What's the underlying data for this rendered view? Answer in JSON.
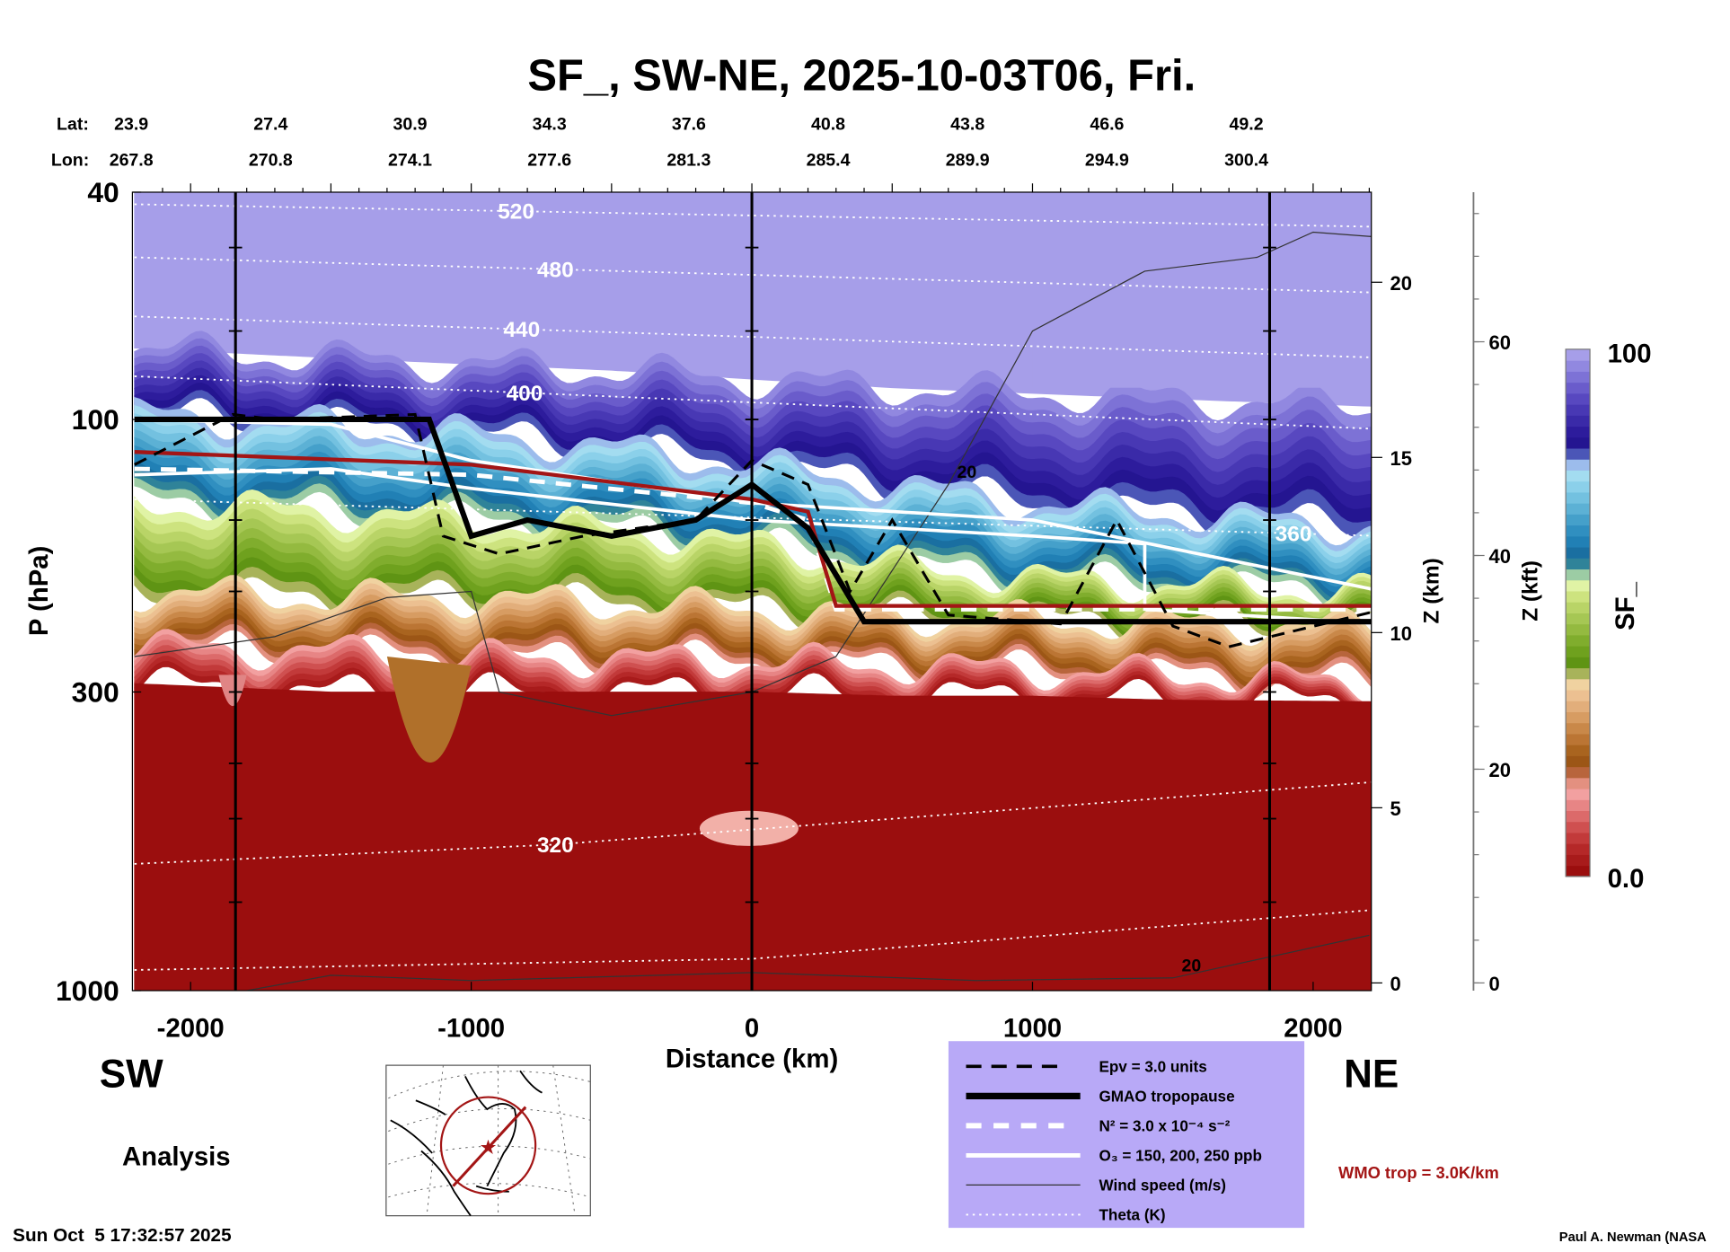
{
  "chart_data": {
    "type": "heatmap",
    "title": "SF_, SW-NE, 2025-10-03T06, Fri.",
    "xlabel": "Distance (km)",
    "ylabel": "P (hPa)",
    "y2label": "Z (km)",
    "y3label": "Z (kft)",
    "colorbar_label": "SF_",
    "xlim": [
      -2170,
      2245
    ],
    "ylim_hPa": [
      1000,
      40
    ],
    "x_ticks": [
      "-2000",
      "-1000",
      "0",
      "1000",
      "2000"
    ],
    "x_tick_values": [
      -2000,
      -1000,
      0,
      1000,
      2000
    ],
    "y_ticks": [
      "40",
      "100",
      "300",
      "1000"
    ],
    "y_tick_values": [
      40,
      100,
      300,
      1000
    ],
    "z_km_ticks": [
      "0",
      "5",
      "10",
      "15",
      "20"
    ],
    "z_km_values": [
      0,
      5,
      10,
      15,
      20
    ],
    "z_kft_ticks": [
      "0",
      "20",
      "40",
      "60"
    ],
    "z_kft_values": [
      0,
      20,
      40,
      60
    ],
    "lat_label": "Lat:",
    "lon_label": "Lon:",
    "lat": [
      "23.9",
      "27.4",
      "30.9",
      "34.3",
      "37.6",
      "40.8",
      "43.8",
      "46.6",
      "49.2"
    ],
    "lon": [
      "267.8",
      "270.8",
      "274.1",
      "277.6",
      "281.3",
      "285.4",
      "289.9",
      "294.9",
      "300.4"
    ],
    "vertical_markers_km": [
      -1840,
      0,
      1845
    ],
    "colorbar": {
      "min_label": "0.0",
      "max_label": "100",
      "colors": [
        "#9b0e0e",
        "#a81b1b",
        "#b52828",
        "#c23a3a",
        "#cf5050",
        "#dc6a6a",
        "#e78585",
        "#f2a0a0",
        "#e39080",
        "#b8653c",
        "#9c5616",
        "#a9641f",
        "#bb7534",
        "#c98849",
        "#d79c62",
        "#e2ae7b",
        "#ecc091",
        "#f0d2a0",
        "#a8b35a",
        "#5f9414",
        "#6fa11e",
        "#80ad2d",
        "#94ba40",
        "#a6c754",
        "#b9d467",
        "#cde37f",
        "#e0f3a5",
        "#9ccca4",
        "#2f8399",
        "#1a6fa1",
        "#2180b5",
        "#308fc0",
        "#45a0ca",
        "#5cb1d5",
        "#73c1e0",
        "#8bd0ea",
        "#a3dcf0",
        "#9cbcec",
        "#4b56b7",
        "#241591",
        "#2d1c9c",
        "#3a2aa8",
        "#4838b4",
        "#5848c0",
        "#6a5ccb",
        "#7d72d6",
        "#9188e0",
        "#a69ee9"
      ]
    },
    "layers_x_km": [
      -2200,
      -1500,
      -1000,
      -500,
      0,
      500,
      1000,
      1500,
      2250
    ],
    "layer_boundaries_hPa": [
      {
        "name": "lavender-purple",
        "values": [
          75,
          78,
          80,
          82,
          85,
          88,
          90,
          92,
          95
        ]
      },
      {
        "name": "purple-blue",
        "values": [
          98,
          102,
          106,
          112,
          120,
          130,
          140,
          146,
          155
        ]
      },
      {
        "name": "blue-green",
        "values": [
          140,
          145,
          150,
          155,
          165,
          180,
          190,
          195,
          200
        ]
      },
      {
        "name": "green-tan",
        "values": [
          200,
          205,
          205,
          210,
          215,
          222,
          225,
          228,
          232
        ]
      },
      {
        "name": "tan-pink",
        "values": [
          250,
          255,
          262,
          262,
          265,
          270,
          275,
          280,
          290
        ]
      },
      {
        "name": "pink-red",
        "values": [
          290,
          300,
          300,
          300,
          300,
          305,
          305,
          310,
          312
        ]
      }
    ],
    "theta_lines": [
      {
        "label": "520",
        "points": [
          [
            -2200,
            42
          ],
          [
            2250,
            46
          ]
        ],
        "label_at_km": -840
      },
      {
        "label": "480",
        "points": [
          [
            -2200,
            52
          ],
          [
            2250,
            60
          ]
        ],
        "label_at_km": -700
      },
      {
        "label": "440",
        "points": [
          [
            -2200,
            66
          ],
          [
            2250,
            78
          ]
        ],
        "label_at_km": -820
      },
      {
        "label": "400",
        "points": [
          [
            -2200,
            84
          ],
          [
            2250,
            104
          ]
        ],
        "label_at_km": -810
      },
      {
        "label": "360",
        "points": [
          [
            -2200,
            138
          ],
          [
            2250,
            160
          ]
        ],
        "label_at_km": 1930
      },
      {
        "label": "320",
        "points": [
          [
            -2200,
            600
          ],
          [
            -700,
            555
          ],
          [
            2250,
            430
          ]
        ],
        "label_at_km": -700
      },
      {
        "label": "",
        "points": [
          [
            -2200,
            920
          ],
          [
            0,
            880
          ],
          [
            2250,
            720
          ]
        ],
        "label_at_km": null
      }
    ],
    "gmao_tropopause": [
      [
        -2200,
        100
      ],
      [
        -1150,
        100
      ],
      [
        -1000,
        160
      ],
      [
        -800,
        150
      ],
      [
        -500,
        160
      ],
      [
        -200,
        150
      ],
      [
        0,
        130
      ],
      [
        200,
        155
      ],
      [
        400,
        226
      ],
      [
        2250,
        226
      ]
    ],
    "wmo_tropopause": [
      [
        -2200,
        114
      ],
      [
        -1000,
        120
      ],
      [
        0,
        138
      ],
      [
        200,
        145
      ],
      [
        300,
        212
      ],
      [
        2250,
        212
      ]
    ],
    "n2_line": [
      [
        -2200,
        122
      ],
      [
        -1000,
        125
      ],
      [
        0,
        140
      ],
      [
        200,
        150
      ],
      [
        300,
        215
      ],
      [
        2250,
        215
      ]
    ],
    "epv_line": [
      [
        -2200,
        120
      ],
      [
        -1850,
        98
      ],
      [
        -1700,
        100
      ],
      [
        -1200,
        98
      ],
      [
        -1100,
        160
      ],
      [
        -900,
        172
      ],
      [
        -600,
        160
      ],
      [
        -200,
        150
      ],
      [
        0,
        118
      ],
      [
        200,
        130
      ],
      [
        350,
        200
      ],
      [
        500,
        150
      ],
      [
        700,
        220
      ],
      [
        1100,
        228
      ],
      [
        1300,
        150
      ],
      [
        1500,
        230
      ],
      [
        1700,
        250
      ],
      [
        2250,
        215
      ]
    ],
    "o3_lines": [
      [
        [
          -2200,
          100
        ],
        [
          -1500,
          102
        ],
        [
          -1000,
          118
        ],
        [
          0,
          140
        ],
        [
          1000,
          150
        ],
        [
          2250,
          200
        ]
      ],
      [
        [
          -2200,
          125
        ],
        [
          -1500,
          122
        ],
        [
          -1000,
          132
        ],
        [
          0,
          150
        ],
        [
          1000,
          160
        ],
        [
          1400,
          165
        ],
        [
          1400,
          215
        ],
        [
          2250,
          228
        ]
      ]
    ],
    "wind_lines": [
      {
        "label": "20",
        "points": [
          [
            -2200,
            260
          ],
          [
            -1700,
            240
          ],
          [
            -1300,
            205
          ],
          [
            -1000,
            200
          ],
          [
            -900,
            300
          ],
          [
            -500,
            330
          ],
          [
            0,
            300
          ],
          [
            300,
            260
          ],
          [
            700,
            130
          ],
          [
            1000,
            70
          ],
          [
            1400,
            55
          ],
          [
            1800,
            52
          ],
          [
            2000,
            47
          ],
          [
            2250,
            48
          ]
        ]
      },
      {
        "label": "20",
        "points": [
          [
            -1800,
            1000
          ],
          [
            -1500,
            940
          ],
          [
            -1000,
            960
          ],
          [
            0,
            930
          ],
          [
            800,
            960
          ],
          [
            1500,
            950
          ],
          [
            2200,
            800
          ]
        ]
      }
    ],
    "legend": {
      "epv": "Epv = 3.0 units",
      "gmao": "GMAO tropopause",
      "n2": "N² = 3.0 x 10⁻⁴ s⁻²",
      "o3": "O₃ = 150, 200, 250 ppb",
      "wind": "Wind speed (m/s)",
      "theta": "Theta (K)"
    },
    "colors": {
      "legend_bg": "#b8a9f7",
      "wmo": "#a31515",
      "field_red": "#9b1010"
    }
  },
  "labels": {
    "sw": "SW",
    "ne": "NE",
    "analysis": "Analysis",
    "timestamp": "Sun Oct  5 17:32:57 2025",
    "wmo_trop": "WMO trop = 3.0K/km",
    "credit": "Paul A. Newman (NASA"
  }
}
